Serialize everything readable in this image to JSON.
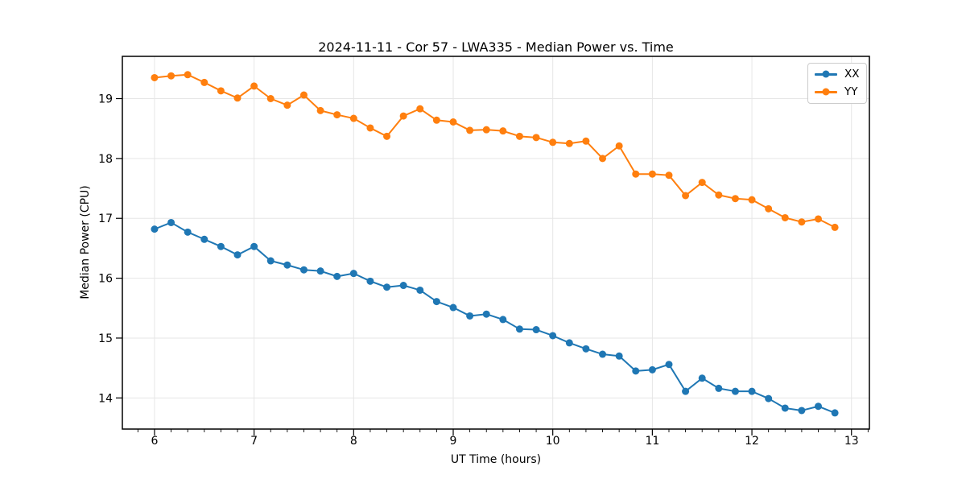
{
  "figure": {
    "background": "#ffffff"
  },
  "chart_data": {
    "type": "line",
    "title": "2024-11-11 - Cor 57 - LWA335 - Median Power vs. Time",
    "xlabel": "UT Time (hours)",
    "ylabel": "Median Power (CPU)",
    "xlim": [
      5.677,
      13.18
    ],
    "ylim": [
      13.48,
      19.706
    ],
    "xticks": [
      6,
      7,
      8,
      9,
      10,
      11,
      12,
      13
    ],
    "yticks": [
      14,
      15,
      16,
      17,
      18,
      19
    ],
    "x_minor_tick_step": 0.166667,
    "grid": true,
    "grid_color": "#e6e6e6",
    "spine_color": "#000000",
    "legend_position": "upper right",
    "x": [
      6.0,
      6.1667,
      6.3333,
      6.5,
      6.6667,
      6.8333,
      7.0,
      7.1667,
      7.3333,
      7.5,
      7.6667,
      7.8333,
      8.0,
      8.1667,
      8.3333,
      8.5,
      8.6667,
      8.8333,
      9.0,
      9.1667,
      9.3333,
      9.5,
      9.6667,
      9.8333,
      10.0,
      10.1667,
      10.3333,
      10.5,
      10.6667,
      10.8333,
      11.0,
      11.1667,
      11.3333,
      11.5,
      11.6667,
      11.8333,
      12.0,
      12.1667,
      12.3333,
      12.5,
      12.6667,
      12.8333
    ],
    "series": [
      {
        "name": "XX",
        "color": "#1f77b4",
        "values": [
          16.82,
          16.93,
          16.77,
          16.65,
          16.53,
          16.39,
          16.53,
          16.29,
          16.22,
          16.14,
          16.12,
          16.03,
          16.08,
          15.95,
          15.85,
          15.88,
          15.8,
          15.61,
          15.51,
          15.37,
          15.4,
          15.31,
          15.15,
          15.14,
          15.04,
          14.92,
          14.82,
          14.73,
          14.7,
          14.45,
          14.47,
          14.56,
          14.11,
          14.33,
          14.16,
          14.11,
          14.11,
          13.99,
          13.83,
          13.79,
          13.86,
          13.75
        ]
      },
      {
        "name": "YY",
        "color": "#ff7f0e",
        "values": [
          19.35,
          19.38,
          19.4,
          19.27,
          19.13,
          19.01,
          19.21,
          19.0,
          18.89,
          19.06,
          18.8,
          18.73,
          18.67,
          18.51,
          18.37,
          18.71,
          18.83,
          18.64,
          18.61,
          18.47,
          18.48,
          18.46,
          18.37,
          18.35,
          18.27,
          18.25,
          18.29,
          18.0,
          18.21,
          17.74,
          17.74,
          17.72,
          17.38,
          17.6,
          17.39,
          17.33,
          17.31,
          17.16,
          17.01,
          16.94,
          16.99,
          16.85
        ]
      }
    ]
  }
}
